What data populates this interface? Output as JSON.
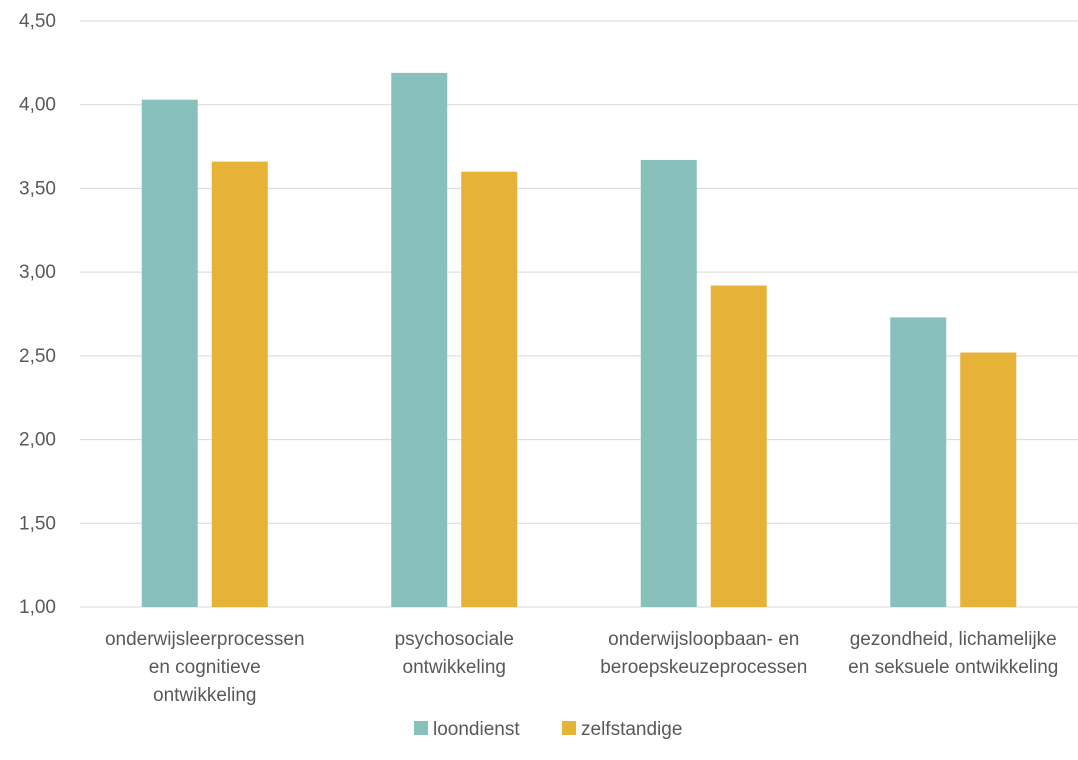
{
  "chart_data": {
    "type": "bar",
    "categories": [
      [
        "onderwijsleerprocessen",
        "en cognitieve",
        "ontwikkeling"
      ],
      [
        "psychosociale",
        "ontwikkeling"
      ],
      [
        "onderwijsloopbaan- en",
        "beroepskeuzeprocessen"
      ],
      [
        "gezondheid, lichamelijke",
        "en seksuele ontwikkeling"
      ]
    ],
    "series": [
      {
        "name": "loondienst",
        "color": "#88c0bc",
        "values": [
          4.03,
          4.19,
          3.67,
          2.73
        ]
      },
      {
        "name": "zelfstandige",
        "color": "#e6b238",
        "values": [
          3.66,
          3.6,
          2.92,
          2.52
        ]
      }
    ],
    "ylim": [
      1.0,
      4.5
    ],
    "yticks": [
      "1,00",
      "1,50",
      "2,00",
      "2,50",
      "3,00",
      "3,50",
      "4,00",
      "4,50"
    ],
    "grid": true,
    "legend_position": "bottom"
  }
}
